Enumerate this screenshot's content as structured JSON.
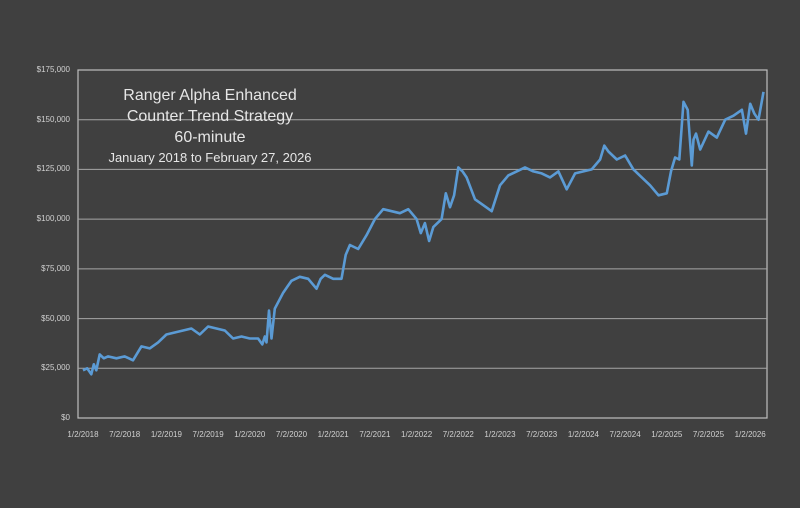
{
  "chart_data": {
    "type": "line",
    "title": "Ranger Alpha Enhanced Counter Trend Strategy 60-minute",
    "subtitle": "January 2018 to February 27, 2026",
    "title_lines": [
      "Ranger Alpha Enhanced",
      "Counter Trend Strategy",
      "60-minute",
      "January 2018 to February 27, 2026"
    ],
    "xlabel": "",
    "ylabel": "",
    "ylim": [
      0,
      175000
    ],
    "grid": true,
    "legend": "none",
    "y_ticks": [
      "$0",
      "$25,000",
      "$50,000",
      "$75,000",
      "$100,000",
      "$125,000",
      "$150,000",
      "$175,000"
    ],
    "x_ticks": [
      "1/2/2018",
      "7/2/2018",
      "1/2/2019",
      "7/2/2019",
      "1/2/2020",
      "7/2/2020",
      "1/2/2021",
      "7/2/2021",
      "1/2/2022",
      "7/2/2022",
      "1/2/2023",
      "7/2/2023",
      "1/2/2024",
      "7/2/2024",
      "1/2/2025",
      "7/2/2025",
      "1/2/2026"
    ],
    "line_color": "#5b9bd5",
    "series": [
      {
        "name": "Equity",
        "x": [
          2018.0,
          2018.05,
          2018.1,
          2018.13,
          2018.16,
          2018.2,
          2018.25,
          2018.3,
          2018.4,
          2018.5,
          2018.6,
          2018.7,
          2018.8,
          2018.9,
          2019.0,
          2019.1,
          2019.2,
          2019.3,
          2019.4,
          2019.5,
          2019.6,
          2019.7,
          2019.8,
          2019.9,
          2020.0,
          2020.1,
          2020.15,
          2020.18,
          2020.2,
          2020.23,
          2020.26,
          2020.3,
          2020.4,
          2020.45,
          2020.5,
          2020.6,
          2020.7,
          2020.8,
          2020.85,
          2020.9,
          2021.0,
          2021.1,
          2021.15,
          2021.2,
          2021.3,
          2021.4,
          2021.5,
          2021.6,
          2021.7,
          2021.8,
          2021.9,
          2022.0,
          2022.05,
          2022.1,
          2022.15,
          2022.2,
          2022.3,
          2022.35,
          2022.4,
          2022.45,
          2022.5,
          2022.55,
          2022.6,
          2022.7,
          2022.8,
          2022.9,
          2023.0,
          2023.1,
          2023.2,
          2023.3,
          2023.4,
          2023.5,
          2023.6,
          2023.7,
          2023.8,
          2023.9,
          2024.0,
          2024.1,
          2024.2,
          2024.25,
          2024.3,
          2024.4,
          2024.5,
          2024.6,
          2024.7,
          2024.8,
          2024.9,
          2025.0,
          2025.05,
          2025.1,
          2025.15,
          2025.2,
          2025.25,
          2025.3,
          2025.32,
          2025.35,
          2025.4,
          2025.5,
          2025.6,
          2025.7,
          2025.8,
          2025.9,
          2025.95,
          2026.0,
          2026.05,
          2026.1,
          2026.16
        ],
        "values": [
          24000,
          25000,
          22000,
          27000,
          24000,
          32000,
          30000,
          31000,
          30000,
          31000,
          29000,
          36000,
          35000,
          38000,
          42000,
          43000,
          44000,
          45000,
          42000,
          46000,
          45000,
          44000,
          40000,
          41000,
          40000,
          40000,
          37000,
          41000,
          38000,
          54000,
          40000,
          55000,
          63000,
          66000,
          69000,
          71000,
          70000,
          65000,
          70000,
          72000,
          70000,
          70000,
          82000,
          87000,
          85000,
          92000,
          100000,
          105000,
          104000,
          103000,
          105000,
          100000,
          93000,
          98000,
          89000,
          96000,
          100000,
          113000,
          106000,
          112000,
          126000,
          124000,
          121000,
          110000,
          107000,
          104000,
          117000,
          122000,
          124000,
          126000,
          124000,
          123000,
          121000,
          124000,
          115000,
          123000,
          124000,
          125000,
          130000,
          137000,
          134000,
          130000,
          132000,
          125000,
          121000,
          117000,
          112000,
          113000,
          124000,
          131000,
          130000,
          159000,
          155000,
          127000,
          140000,
          143000,
          135000,
          144000,
          141000,
          150000,
          152000,
          155000,
          143000,
          158000,
          153000,
          150000,
          164000
        ]
      }
    ]
  }
}
